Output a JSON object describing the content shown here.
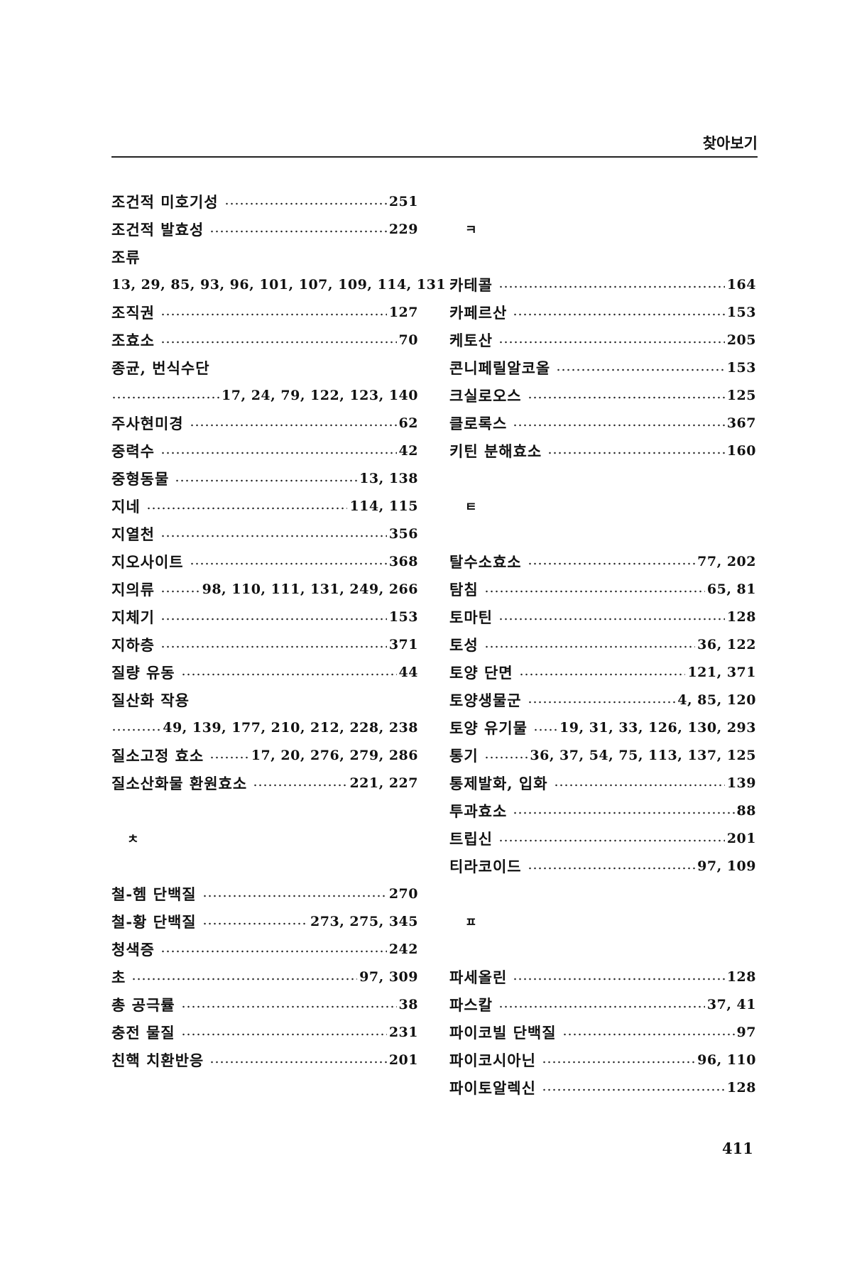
{
  "running_head": "찾아보기",
  "page_number": "411",
  "left": [
    {
      "name": "조건적 미호기성",
      "pages": "251"
    },
    {
      "name": "조건적 발효성",
      "pages": "229"
    },
    {
      "name": "조류"
    },
    {
      "plain": "13, 29, 85, 93, 96, 101, 107, 109, 114, 131"
    },
    {
      "name": "조직권",
      "pages": "127"
    },
    {
      "name": "조효소",
      "pages": "70"
    },
    {
      "name": "종균, 번식수단"
    },
    {
      "cont": "17, 24, 79, 122, 123, 140"
    },
    {
      "name": "주사현미경",
      "pages": "62"
    },
    {
      "name": "중력수",
      "pages": "42"
    },
    {
      "name": "중형동물",
      "pages": "13, 138"
    },
    {
      "name": "지네",
      "pages": "114, 115"
    },
    {
      "name": "지열천",
      "pages": "356"
    },
    {
      "name": "지오사이트",
      "pages": "368"
    },
    {
      "name": "지의류",
      "pages": "98, 110, 111, 131, 249, 266"
    },
    {
      "name": "지체기",
      "pages": "153"
    },
    {
      "name": "지하층",
      "pages": "371"
    },
    {
      "name": "질량 유동",
      "pages": "44"
    },
    {
      "name": "질산화 작용"
    },
    {
      "cont": "49, 139, 177, 210, 212, 228, 238"
    },
    {
      "name": "질소고정 효소",
      "pages": "17, 20, 276, 279, 286"
    },
    {
      "name": "질소산화물 환원효소",
      "pages": "221, 227"
    },
    {},
    {
      "heading": "ㅊ"
    },
    {},
    {
      "name": "철-헴 단백질",
      "pages": "270"
    },
    {
      "name": "철-황 단백질",
      "pages": "273, 275, 345"
    },
    {
      "name": "청색증",
      "pages": "242"
    },
    {
      "name": "초",
      "pages": "97, 309"
    },
    {
      "name": "총 공극률",
      "pages": "38"
    },
    {
      "name": "충전 물질",
      "pages": "231"
    },
    {
      "name": "친핵 치환반응",
      "pages": "201"
    }
  ],
  "right": [
    {},
    {
      "heading": "ㅋ"
    },
    {},
    {
      "name": "카테콜",
      "pages": "164"
    },
    {
      "name": "카페르산",
      "pages": "153"
    },
    {
      "name": "케토산",
      "pages": "205"
    },
    {
      "name": "콘니페릴알코올",
      "pages": "153"
    },
    {
      "name": "크실로오스",
      "pages": "125"
    },
    {
      "name": "클로록스",
      "pages": "367"
    },
    {
      "name": "키틴 분해효소",
      "pages": "160"
    },
    {},
    {
      "heading": "ㅌ"
    },
    {},
    {
      "name": "탈수소효소",
      "pages": "77, 202"
    },
    {
      "name": "탐침",
      "pages": "65, 81"
    },
    {
      "name": "토마틴",
      "pages": "128"
    },
    {
      "name": "토성",
      "pages": "36, 122"
    },
    {
      "name": "토양 단면",
      "pages": "121, 371"
    },
    {
      "name": "토양생물군",
      "pages": "4, 85, 120"
    },
    {
      "name": "토양 유기물",
      "pages": "19, 31, 33, 126, 130, 293"
    },
    {
      "name": "통기",
      "pages": "36, 37, 54, 75, 113, 137, 125"
    },
    {
      "name": "통제발화, 입화",
      "pages": "139"
    },
    {
      "name": "투과효소",
      "pages": "88"
    },
    {
      "name": "트립신",
      "pages": "201"
    },
    {
      "name": "티라코이드",
      "pages": "97, 109"
    },
    {},
    {
      "heading": "ㅍ"
    },
    {},
    {
      "name": "파세올린",
      "pages": "128"
    },
    {
      "name": "파스칼",
      "pages": "37, 41"
    },
    {
      "name": "파이코빌 단백질",
      "pages": "97"
    },
    {
      "name": "파이코시아닌",
      "pages": "96, 110"
    },
    {
      "name": "파이토알렉신",
      "pages": "128"
    }
  ]
}
